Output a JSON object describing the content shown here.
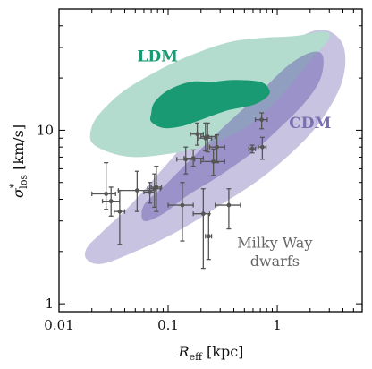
{
  "chart_data": {
    "type": "scatter",
    "xscale": "log",
    "yscale": "log",
    "xlim": [
      0.01,
      6
    ],
    "ylim": [
      0.9,
      50
    ],
    "xlabel_main": "R",
    "xlabel_sub": "eff",
    "xlabel_unit": " [kpc]",
    "ylabel_main": "σ",
    "ylabel_sup": "*",
    "ylabel_sub": "los",
    "ylabel_unit": " [km/s]",
    "x_tick_labels": [
      {
        "value": 0.01,
        "label": "0.01"
      },
      {
        "value": 0.1,
        "label": "0.1"
      },
      {
        "value": 1,
        "label": "1"
      }
    ],
    "y_tick_labels": [
      {
        "value": 1,
        "label": "1"
      },
      {
        "value": 10,
        "label": "10"
      }
    ],
    "annotations": {
      "ldm": {
        "text": "LDM",
        "color": "#1a9a72",
        "x": 0.08,
        "y": 25
      },
      "cdm": {
        "text": "CDM",
        "color": "#7a6fb0",
        "x": 2.0,
        "y": 10.3
      },
      "mw_line1": {
        "text": "Milky Way",
        "color": "#666666",
        "x": 0.95,
        "y": 2.1
      },
      "mw_line2": {
        "text": "dwarfs",
        "color": "#666666",
        "x": 0.95,
        "y": 1.65
      }
    },
    "regions": [
      {
        "name": "CDM outer",
        "color": "#c7c3e0",
        "points": [
          [
            0.018,
            1.8
          ],
          [
            0.025,
            1.7
          ],
          [
            0.05,
            2.0
          ],
          [
            0.12,
            2.6
          ],
          [
            0.3,
            3.7
          ],
          [
            0.8,
            5.6
          ],
          [
            2.0,
            9.5
          ],
          [
            3.5,
            16
          ],
          [
            4.2,
            24
          ],
          [
            3.8,
            33
          ],
          [
            2.5,
            38
          ],
          [
            1.3,
            32
          ],
          [
            0.6,
            22
          ],
          [
            0.25,
            12.5
          ],
          [
            0.1,
            6.5
          ],
          [
            0.045,
            3.7
          ],
          [
            0.025,
            2.6
          ],
          [
            0.018,
            2.1
          ]
        ]
      },
      {
        "name": "LDM outer",
        "color": "#b3dccf",
        "points": [
          [
            0.02,
            8.5
          ],
          [
            0.02,
            10.5
          ],
          [
            0.025,
            13
          ],
          [
            0.04,
            17
          ],
          [
            0.08,
            22
          ],
          [
            0.16,
            27
          ],
          [
            0.35,
            32
          ],
          [
            0.7,
            34
          ],
          [
            1.5,
            35
          ],
          [
            2.6,
            37
          ],
          [
            3.0,
            34
          ],
          [
            2.0,
            25
          ],
          [
            1.2,
            17
          ],
          [
            0.7,
            12
          ],
          [
            0.4,
            9.5
          ],
          [
            0.2,
            8.0
          ],
          [
            0.1,
            7.3
          ],
          [
            0.05,
            7.0
          ],
          [
            0.03,
            7.4
          ]
        ]
      },
      {
        "name": "CDM inner",
        "color": "#6d62b0",
        "opacity": 0.5,
        "points": [
          [
            0.06,
            3.0
          ],
          [
            0.09,
            3.3
          ],
          [
            0.15,
            4.2
          ],
          [
            0.3,
            5.5
          ],
          [
            0.6,
            7.5
          ],
          [
            1.0,
            10
          ],
          [
            1.8,
            14.5
          ],
          [
            2.5,
            20
          ],
          [
            2.6,
            27
          ],
          [
            2.0,
            28
          ],
          [
            1.2,
            23
          ],
          [
            0.6,
            15
          ],
          [
            0.3,
            10
          ],
          [
            0.15,
            6.5
          ],
          [
            0.09,
            4.7
          ],
          [
            0.06,
            3.7
          ]
        ]
      },
      {
        "name": "LDM inner",
        "color": "#1a9a72",
        "points": [
          [
            0.07,
            12.5
          ],
          [
            0.075,
            14.5
          ],
          [
            0.1,
            17
          ],
          [
            0.16,
            19
          ],
          [
            0.25,
            19
          ],
          [
            0.4,
            19.5
          ],
          [
            0.7,
            19
          ],
          [
            0.85,
            17
          ],
          [
            0.8,
            15.5
          ],
          [
            0.6,
            14
          ],
          [
            0.35,
            13
          ],
          [
            0.2,
            11.5
          ],
          [
            0.13,
            10.5
          ],
          [
            0.09,
            10.3
          ],
          [
            0.07,
            11.2
          ]
        ]
      }
    ],
    "series": [
      {
        "color": "#555555",
        "points": [
          {
            "x": 0.027,
            "y": 4.3,
            "xlo": 0.02,
            "xhi": 0.033,
            "ylo": 3.5,
            "yhi": 6.5
          },
          {
            "x": 0.03,
            "y": 3.9,
            "xlo": 0.025,
            "xhi": 0.036,
            "ylo": 3.2,
            "yhi": 4.7
          },
          {
            "x": 0.036,
            "y": 3.4,
            "xlo": 0.032,
            "xhi": 0.04,
            "ylo": 2.2,
            "yhi": 4.5
          },
          {
            "x": 0.052,
            "y": 4.5,
            "xlo": 0.035,
            "xhi": 0.075,
            "ylo": 3.4,
            "yhi": 5.8
          },
          {
            "x": 0.068,
            "y": 4.4,
            "xlo": 0.06,
            "xhi": 0.075,
            "ylo": 3.8,
            "yhi": 5.0
          },
          {
            "x": 0.075,
            "y": 4.6,
            "xlo": 0.065,
            "xhi": 0.085,
            "ylo": 3.6,
            "yhi": 5.6
          },
          {
            "x": 0.078,
            "y": 4.7,
            "xlo": 0.07,
            "xhi": 0.087,
            "ylo": 3.4,
            "yhi": 6.2
          },
          {
            "x": 0.135,
            "y": 3.7,
            "xlo": 0.1,
            "xhi": 0.17,
            "ylo": 2.3,
            "yhi": 5.0
          },
          {
            "x": 0.145,
            "y": 6.8,
            "xlo": 0.12,
            "xhi": 0.175,
            "ylo": 5.6,
            "yhi": 8.0
          },
          {
            "x": 0.17,
            "y": 6.9,
            "xlo": 0.14,
            "xhi": 0.21,
            "ylo": 6.2,
            "yhi": 7.7
          },
          {
            "x": 0.185,
            "y": 9.5,
            "xlo": 0.16,
            "xhi": 0.21,
            "ylo": 8.2,
            "yhi": 11.0
          },
          {
            "x": 0.21,
            "y": 3.3,
            "xlo": 0.17,
            "xhi": 0.24,
            "ylo": 1.6,
            "yhi": 4.6
          },
          {
            "x": 0.22,
            "y": 9.0,
            "xlo": 0.19,
            "xhi": 0.25,
            "ylo": 7.6,
            "yhi": 11.0
          },
          {
            "x": 0.23,
            "y": 9.2,
            "xlo": 0.2,
            "xhi": 0.27,
            "ylo": 7.5,
            "yhi": 11.0
          },
          {
            "x": 0.235,
            "y": 2.45,
            "xlo": 0.22,
            "xhi": 0.25,
            "ylo": 1.8,
            "yhi": 3.3
          },
          {
            "x": 0.26,
            "y": 6.6,
            "xlo": 0.2,
            "xhi": 0.33,
            "ylo": 5.5,
            "yhi": 7.8
          },
          {
            "x": 0.28,
            "y": 8.0,
            "xlo": 0.24,
            "xhi": 0.33,
            "ylo": 6.5,
            "yhi": 9.4
          },
          {
            "x": 0.36,
            "y": 3.7,
            "xlo": 0.27,
            "xhi": 0.46,
            "ylo": 2.7,
            "yhi": 4.6
          },
          {
            "x": 0.59,
            "y": 7.8,
            "xlo": 0.55,
            "xhi": 0.63,
            "ylo": 7.4,
            "yhi": 8.2
          },
          {
            "x": 0.72,
            "y": 11.5,
            "xlo": 0.63,
            "xhi": 0.81,
            "ylo": 10.2,
            "yhi": 12.6
          },
          {
            "x": 0.73,
            "y": 8.0,
            "xlo": 0.67,
            "xhi": 0.79,
            "ylo": 6.8,
            "yhi": 9.1
          }
        ]
      }
    ],
    "grid": false,
    "legend": "none"
  }
}
